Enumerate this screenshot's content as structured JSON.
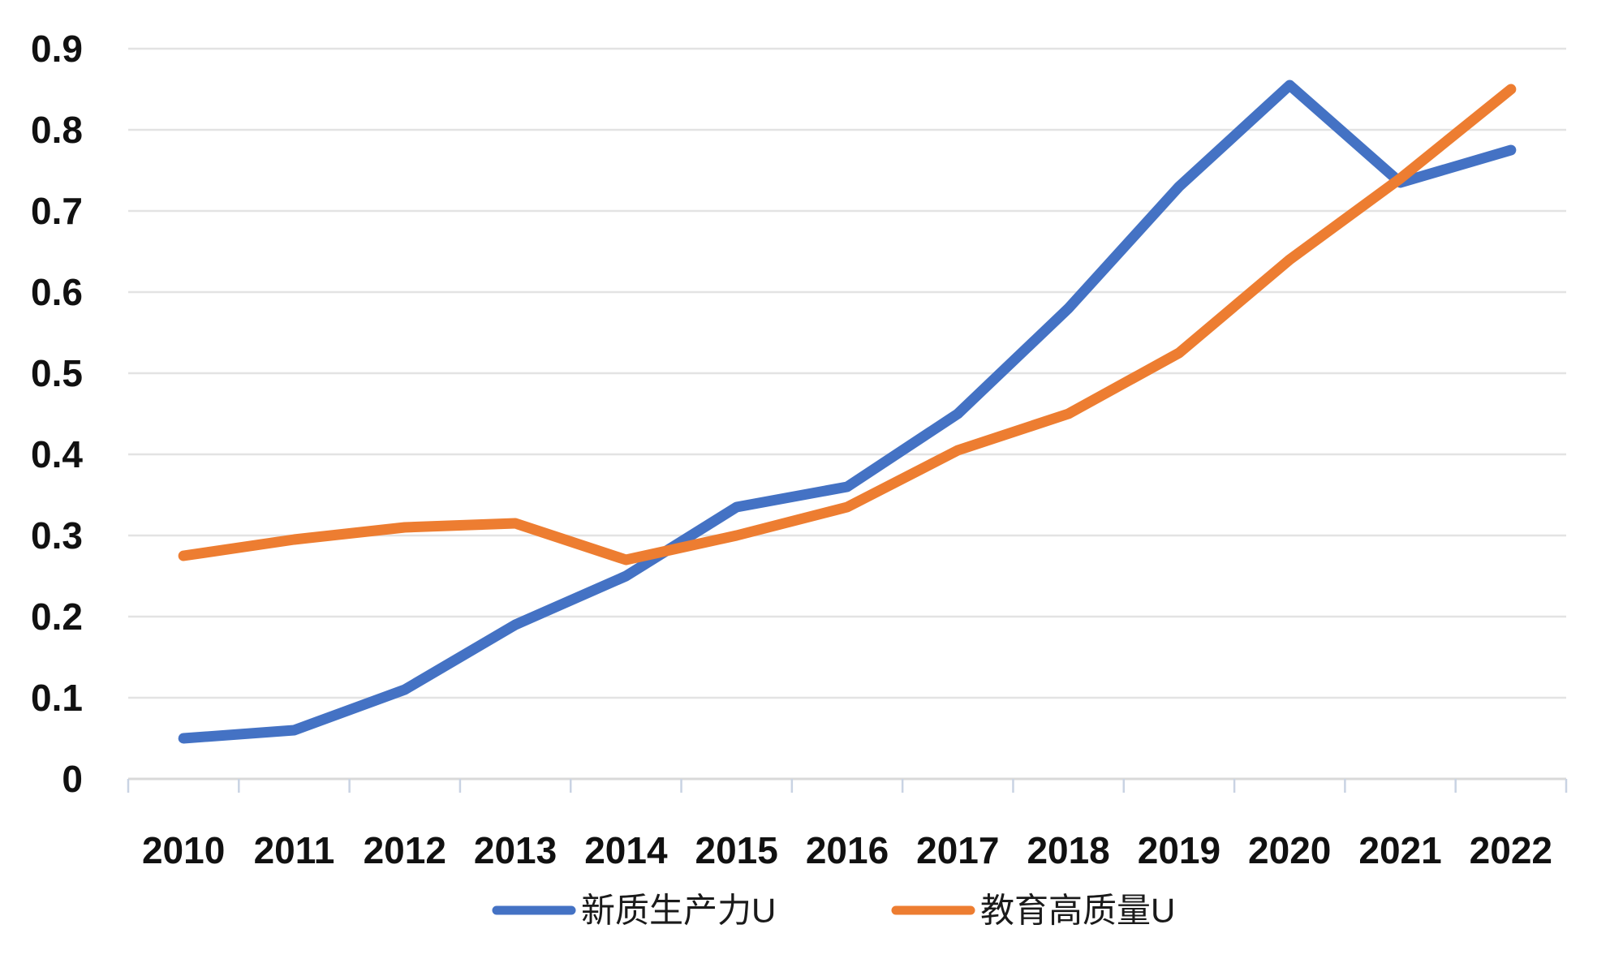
{
  "chart_data": {
    "type": "line",
    "categories": [
      "2010",
      "2011",
      "2012",
      "2013",
      "2014",
      "2015",
      "2016",
      "2017",
      "2018",
      "2019",
      "2020",
      "2021",
      "2022"
    ],
    "series": [
      {
        "name": "新质生产力U",
        "color": "#4472C4",
        "values": [
          0.05,
          0.06,
          0.11,
          0.19,
          0.25,
          0.335,
          0.36,
          0.45,
          0.58,
          0.73,
          0.855,
          0.735,
          0.775
        ]
      },
      {
        "name": "教育高质量U",
        "color": "#ED7D31",
        "values": [
          0.275,
          0.295,
          0.31,
          0.315,
          0.27,
          0.3,
          0.335,
          0.405,
          0.45,
          0.525,
          0.64,
          0.74,
          0.85
        ]
      }
    ],
    "title": "",
    "xlabel": "",
    "ylabel": "",
    "ylim": [
      0,
      0.9
    ],
    "ytick_step": 0.1,
    "ytick_labels": [
      "0",
      "0.1",
      "0.2",
      "0.3",
      "0.4",
      "0.5",
      "0.6",
      "0.7",
      "0.8",
      "0.9"
    ],
    "grid": true,
    "legend_position": "bottom"
  },
  "colors": {
    "background": "#FFFFFF",
    "gridline": "#E3E3E3",
    "axis_line": "#D9D9D9",
    "tick_mark": "#C9D3E3",
    "label_text": "#111111"
  }
}
